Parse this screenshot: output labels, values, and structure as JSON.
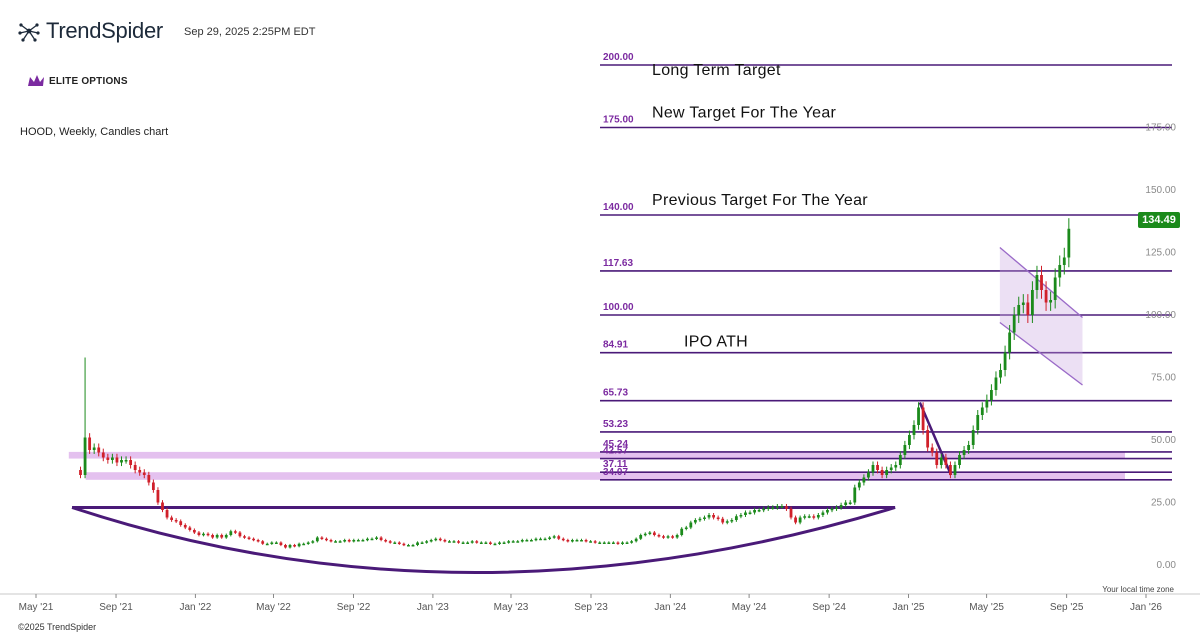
{
  "header": {
    "brand": "TrendSpider",
    "timestamp": "Sep 29, 2025 2:25PM EDT",
    "logo_text": "ELITE OPTIONS",
    "chart_description": "HOOD, Weekly, Candles chart"
  },
  "footer": {
    "timezone_note": "Your local time zone",
    "copyright": "©2025 TrendSpider"
  },
  "colors": {
    "up": "#1b8a1b",
    "down": "#d0202a",
    "level_line": "#4a1a78",
    "level_label": "#7b2aa0",
    "zone": "#d8a6e8",
    "trendline": "#4a1a78",
    "channel": "#9a6ac8",
    "badge": "#1b8a1b"
  },
  "chart_data": {
    "type": "candlestick",
    "title": "HOOD, Weekly, Candles chart",
    "ylim": [
      -8,
      210
    ],
    "y_ticks": [
      {
        "value": 0,
        "label": "0.00"
      },
      {
        "value": 25,
        "label": "25.00"
      },
      {
        "value": 50,
        "label": "50.00"
      },
      {
        "value": 75,
        "label": "75.00"
      },
      {
        "value": 100,
        "label": "100.00"
      },
      {
        "value": 125,
        "label": "125.00"
      },
      {
        "value": 150,
        "label": "150.00"
      },
      {
        "value": 175,
        "label": "175.00"
      }
    ],
    "x_ticks": [
      "May '21",
      "Sep '21",
      "Jan '22",
      "May '22",
      "Sep '22",
      "Jan '23",
      "May '23",
      "Sep '23",
      "Jan '24",
      "May '24",
      "Sep '24",
      "Jan '25",
      "May '25",
      "Sep '25",
      "Jan '26"
    ],
    "last_price": "134.49",
    "levels": [
      {
        "value": 200,
        "label": "200.00",
        "annotation": "Long Term Target"
      },
      {
        "value": 175,
        "label": "175.00",
        "annotation": "New Target For The Year"
      },
      {
        "value": 140,
        "label": "140.00",
        "annotation": "Previous Target For The Year"
      },
      {
        "value": 117.63,
        "label": "117.63",
        "annotation": ""
      },
      {
        "value": 100,
        "label": "100.00",
        "annotation": ""
      },
      {
        "value": 84.91,
        "label": "84.91",
        "annotation": "IPO ATH"
      },
      {
        "value": 65.73,
        "label": "65.73",
        "annotation": ""
      },
      {
        "value": 53.23,
        "label": "53.23",
        "annotation": ""
      },
      {
        "value": 45.24,
        "label": "45.24",
        "annotation": ""
      },
      {
        "value": 42.57,
        "label": "42.57",
        "annotation": ""
      },
      {
        "value": 37.11,
        "label": "37.11",
        "annotation": ""
      },
      {
        "value": 34.07,
        "label": "34.07",
        "annotation": ""
      }
    ],
    "zones": [
      {
        "from": 42.57,
        "to": 45.24,
        "start": "2021-07-15"
      },
      {
        "from": 34.07,
        "to": 37.11,
        "start": "2021-08-10"
      }
    ],
    "closes": [
      {
        "date": "2021-08-02",
        "close": 36
      },
      {
        "date": "2021-08-09",
        "close": 51
      },
      {
        "date": "2021-08-16",
        "close": 46
      },
      {
        "date": "2021-08-23",
        "close": 47
      },
      {
        "date": "2021-08-30",
        "close": 45
      },
      {
        "date": "2021-09-06",
        "close": 43
      },
      {
        "date": "2021-09-13",
        "close": 42
      },
      {
        "date": "2021-09-20",
        "close": 43
      },
      {
        "date": "2021-09-27",
        "close": 41
      },
      {
        "date": "2021-10-04",
        "close": 42
      },
      {
        "date": "2021-10-11",
        "close": 42
      },
      {
        "date": "2021-10-18",
        "close": 40
      },
      {
        "date": "2021-10-25",
        "close": 38
      },
      {
        "date": "2021-11-01",
        "close": 37
      },
      {
        "date": "2021-11-08",
        "close": 36
      },
      {
        "date": "2021-11-15",
        "close": 33
      },
      {
        "date": "2021-11-22",
        "close": 30
      },
      {
        "date": "2021-11-29",
        "close": 25
      },
      {
        "date": "2021-12-06",
        "close": 22
      },
      {
        "date": "2021-12-13",
        "close": 19
      },
      {
        "date": "2021-12-20",
        "close": 18
      },
      {
        "date": "2021-12-27",
        "close": 17.5
      },
      {
        "date": "2022-01-03",
        "close": 16
      },
      {
        "date": "2022-01-10",
        "close": 15
      },
      {
        "date": "2022-01-17",
        "close": 14
      },
      {
        "date": "2022-01-24",
        "close": 13
      },
      {
        "date": "2022-01-31",
        "close": 12
      },
      {
        "date": "2022-02-07",
        "close": 12.5
      },
      {
        "date": "2022-02-14",
        "close": 12
      },
      {
        "date": "2022-02-21",
        "close": 11
      },
      {
        "date": "2022-02-28",
        "close": 12
      },
      {
        "date": "2022-03-07",
        "close": 11
      },
      {
        "date": "2022-03-14",
        "close": 12
      },
      {
        "date": "2022-03-21",
        "close": 13.5
      },
      {
        "date": "2022-03-28",
        "close": 13
      },
      {
        "date": "2022-04-04",
        "close": 11.5
      },
      {
        "date": "2022-04-11",
        "close": 11
      },
      {
        "date": "2022-04-18",
        "close": 10.5
      },
      {
        "date": "2022-04-25",
        "close": 10
      },
      {
        "date": "2022-05-02",
        "close": 9.5
      },
      {
        "date": "2022-05-09",
        "close": 8.5
      },
      {
        "date": "2022-05-16",
        "close": 8.5
      },
      {
        "date": "2022-05-23",
        "close": 9
      },
      {
        "date": "2022-05-30",
        "close": 9
      },
      {
        "date": "2022-06-06",
        "close": 8
      },
      {
        "date": "2022-06-13",
        "close": 7
      },
      {
        "date": "2022-06-20",
        "close": 8
      },
      {
        "date": "2022-06-27",
        "close": 7.5
      },
      {
        "date": "2022-07-04",
        "close": 8.5
      },
      {
        "date": "2022-07-11",
        "close": 8.5
      },
      {
        "date": "2022-07-18",
        "close": 9
      },
      {
        "date": "2022-07-25",
        "close": 9.5
      },
      {
        "date": "2022-08-01",
        "close": 11
      },
      {
        "date": "2022-08-08",
        "close": 10.5
      },
      {
        "date": "2022-08-15",
        "close": 10
      },
      {
        "date": "2022-08-22",
        "close": 9.5
      },
      {
        "date": "2022-08-29",
        "close": 9.5
      },
      {
        "date": "2022-09-05",
        "close": 9.5
      },
      {
        "date": "2022-09-12",
        "close": 10
      },
      {
        "date": "2022-09-19",
        "close": 9.5
      },
      {
        "date": "2022-09-26",
        "close": 10
      },
      {
        "date": "2022-10-03",
        "close": 10
      },
      {
        "date": "2022-10-10",
        "close": 10
      },
      {
        "date": "2022-10-17",
        "close": 10.5
      },
      {
        "date": "2022-10-24",
        "close": 10.5
      },
      {
        "date": "2022-10-31",
        "close": 11
      },
      {
        "date": "2022-11-07",
        "close": 10
      },
      {
        "date": "2022-11-14",
        "close": 9.5
      },
      {
        "date": "2022-11-21",
        "close": 9
      },
      {
        "date": "2022-11-28",
        "close": 9
      },
      {
        "date": "2022-12-05",
        "close": 8.5
      },
      {
        "date": "2022-12-12",
        "close": 8
      },
      {
        "date": "2022-12-19",
        "close": 8
      },
      {
        "date": "2022-12-26",
        "close": 8
      },
      {
        "date": "2023-01-02",
        "close": 9
      },
      {
        "date": "2023-01-09",
        "close": 9
      },
      {
        "date": "2023-01-16",
        "close": 9.5
      },
      {
        "date": "2023-01-23",
        "close": 10
      },
      {
        "date": "2023-01-30",
        "close": 10.5
      },
      {
        "date": "2023-02-06",
        "close": 10
      },
      {
        "date": "2023-02-13",
        "close": 9.5
      },
      {
        "date": "2023-02-20",
        "close": 9.5
      },
      {
        "date": "2023-02-27",
        "close": 9.5
      },
      {
        "date": "2023-03-06",
        "close": 9
      },
      {
        "date": "2023-03-13",
        "close": 9
      },
      {
        "date": "2023-03-20",
        "close": 9
      },
      {
        "date": "2023-03-27",
        "close": 9.5
      },
      {
        "date": "2023-04-03",
        "close": 9
      },
      {
        "date": "2023-04-10",
        "close": 9
      },
      {
        "date": "2023-04-17",
        "close": 9
      },
      {
        "date": "2023-04-24",
        "close": 8.5
      },
      {
        "date": "2023-05-01",
        "close": 8.5
      },
      {
        "date": "2023-05-08",
        "close": 9
      },
      {
        "date": "2023-05-15",
        "close": 9
      },
      {
        "date": "2023-05-22",
        "close": 9.5
      },
      {
        "date": "2023-05-29",
        "close": 9.5
      },
      {
        "date": "2023-06-05",
        "close": 9.5
      },
      {
        "date": "2023-06-12",
        "close": 10
      },
      {
        "date": "2023-06-19",
        "close": 10
      },
      {
        "date": "2023-06-26",
        "close": 10
      },
      {
        "date": "2023-07-03",
        "close": 10.5
      },
      {
        "date": "2023-07-10",
        "close": 10.5
      },
      {
        "date": "2023-07-17",
        "close": 10.5
      },
      {
        "date": "2023-07-24",
        "close": 11
      },
      {
        "date": "2023-07-31",
        "close": 11.5
      },
      {
        "date": "2023-08-07",
        "close": 10.5
      },
      {
        "date": "2023-08-14",
        "close": 10
      },
      {
        "date": "2023-08-21",
        "close": 9.5
      },
      {
        "date": "2023-08-28",
        "close": 10
      },
      {
        "date": "2023-09-04",
        "close": 10
      },
      {
        "date": "2023-09-11",
        "close": 10
      },
      {
        "date": "2023-09-18",
        "close": 9.5
      },
      {
        "date": "2023-09-25",
        "close": 9.5
      },
      {
        "date": "2023-10-02",
        "close": 9
      },
      {
        "date": "2023-10-09",
        "close": 9
      },
      {
        "date": "2023-10-16",
        "close": 9
      },
      {
        "date": "2023-10-23",
        "close": 9
      },
      {
        "date": "2023-10-30",
        "close": 9
      },
      {
        "date": "2023-11-06",
        "close": 8.5
      },
      {
        "date": "2023-11-13",
        "close": 9
      },
      {
        "date": "2023-11-20",
        "close": 9
      },
      {
        "date": "2023-11-27",
        "close": 9.5
      },
      {
        "date": "2023-12-04",
        "close": 10.5
      },
      {
        "date": "2023-12-11",
        "close": 12
      },
      {
        "date": "2023-12-18",
        "close": 12.5
      },
      {
        "date": "2023-12-25",
        "close": 13
      },
      {
        "date": "2024-01-01",
        "close": 12
      },
      {
        "date": "2024-01-08",
        "close": 11.5
      },
      {
        "date": "2024-01-15",
        "close": 11
      },
      {
        "date": "2024-01-22",
        "close": 11.5
      },
      {
        "date": "2024-01-29",
        "close": 11
      },
      {
        "date": "2024-02-05",
        "close": 12
      },
      {
        "date": "2024-02-12",
        "close": 14.5
      },
      {
        "date": "2024-02-19",
        "close": 15
      },
      {
        "date": "2024-02-26",
        "close": 17
      },
      {
        "date": "2024-03-04",
        "close": 18
      },
      {
        "date": "2024-03-11",
        "close": 18.5
      },
      {
        "date": "2024-03-18",
        "close": 19
      },
      {
        "date": "2024-03-25",
        "close": 20
      },
      {
        "date": "2024-04-01",
        "close": 19
      },
      {
        "date": "2024-04-08",
        "close": 18.5
      },
      {
        "date": "2024-04-15",
        "close": 17
      },
      {
        "date": "2024-04-22",
        "close": 17.5
      },
      {
        "date": "2024-04-29",
        "close": 18
      },
      {
        "date": "2024-05-06",
        "close": 19.5
      },
      {
        "date": "2024-05-13",
        "close": 20
      },
      {
        "date": "2024-05-20",
        "close": 21
      },
      {
        "date": "2024-05-27",
        "close": 21
      },
      {
        "date": "2024-06-03",
        "close": 22
      },
      {
        "date": "2024-06-10",
        "close": 22
      },
      {
        "date": "2024-06-17",
        "close": 22.5
      },
      {
        "date": "2024-06-24",
        "close": 23
      },
      {
        "date": "2024-07-01",
        "close": 23
      },
      {
        "date": "2024-07-08",
        "close": 23.5
      },
      {
        "date": "2024-07-15",
        "close": 23.5
      },
      {
        "date": "2024-07-22",
        "close": 22.5
      },
      {
        "date": "2024-07-29",
        "close": 19
      },
      {
        "date": "2024-08-05",
        "close": 17
      },
      {
        "date": "2024-08-12",
        "close": 19
      },
      {
        "date": "2024-08-19",
        "close": 19.5
      },
      {
        "date": "2024-08-26",
        "close": 19.5
      },
      {
        "date": "2024-09-02",
        "close": 19
      },
      {
        "date": "2024-09-09",
        "close": 20
      },
      {
        "date": "2024-09-16",
        "close": 21
      },
      {
        "date": "2024-09-23",
        "close": 22
      },
      {
        "date": "2024-09-30",
        "close": 22.5
      },
      {
        "date": "2024-10-07",
        "close": 23
      },
      {
        "date": "2024-10-14",
        "close": 24
      },
      {
        "date": "2024-10-21",
        "close": 25
      },
      {
        "date": "2024-10-28",
        "close": 25
      },
      {
        "date": "2024-11-04",
        "close": 31
      },
      {
        "date": "2024-11-11",
        "close": 33
      },
      {
        "date": "2024-11-18",
        "close": 35
      },
      {
        "date": "2024-11-25",
        "close": 37
      },
      {
        "date": "2024-12-02",
        "close": 40
      },
      {
        "date": "2024-12-09",
        "close": 38
      },
      {
        "date": "2024-12-16",
        "close": 36
      },
      {
        "date": "2024-12-23",
        "close": 38
      },
      {
        "date": "2024-12-30",
        "close": 39
      },
      {
        "date": "2025-01-06",
        "close": 40
      },
      {
        "date": "2025-01-13",
        "close": 44
      },
      {
        "date": "2025-01-20",
        "close": 48
      },
      {
        "date": "2025-01-27",
        "close": 52
      },
      {
        "date": "2025-02-03",
        "close": 56
      },
      {
        "date": "2025-02-10",
        "close": 63
      },
      {
        "date": "2025-02-17",
        "close": 54
      },
      {
        "date": "2025-02-24",
        "close": 47
      },
      {
        "date": "2025-03-03",
        "close": 45
      },
      {
        "date": "2025-03-10",
        "close": 40
      },
      {
        "date": "2025-03-17",
        "close": 43
      },
      {
        "date": "2025-03-24",
        "close": 40
      },
      {
        "date": "2025-03-31",
        "close": 36
      },
      {
        "date": "2025-04-07",
        "close": 40
      },
      {
        "date": "2025-04-14",
        "close": 44
      },
      {
        "date": "2025-04-21",
        "close": 46
      },
      {
        "date": "2025-04-28",
        "close": 48
      },
      {
        "date": "2025-05-05",
        "close": 54
      },
      {
        "date": "2025-05-12",
        "close": 60
      },
      {
        "date": "2025-05-19",
        "close": 63
      },
      {
        "date": "2025-05-26",
        "close": 66
      },
      {
        "date": "2025-06-02",
        "close": 70
      },
      {
        "date": "2025-06-09",
        "close": 75
      },
      {
        "date": "2025-06-16",
        "close": 78
      },
      {
        "date": "2025-06-23",
        "close": 85
      },
      {
        "date": "2025-06-30",
        "close": 93
      },
      {
        "date": "2025-07-07",
        "close": 100
      },
      {
        "date": "2025-07-14",
        "close": 104
      },
      {
        "date": "2025-07-21",
        "close": 105
      },
      {
        "date": "2025-07-28",
        "close": 100
      },
      {
        "date": "2025-08-04",
        "close": 110
      },
      {
        "date": "2025-08-11",
        "close": 116
      },
      {
        "date": "2025-08-18",
        "close": 110
      },
      {
        "date": "2025-08-25",
        "close": 105
      },
      {
        "date": "2025-09-01",
        "close": 106
      },
      {
        "date": "2025-09-08",
        "close": 115
      },
      {
        "date": "2025-09-15",
        "close": 120
      },
      {
        "date": "2025-09-22",
        "close": 123
      },
      {
        "date": "2025-09-29",
        "close": 134.49
      }
    ],
    "drawings": {
      "rounding_bottom_arc": {
        "from": {
          "date": "2021-07-20",
          "price": 23
        },
        "to": {
          "date": "2025-01-05",
          "price": 23
        },
        "bottom": {
          "date": "2023-04-01",
          "price": -3
        }
      },
      "neckline": {
        "from": {
          "date": "2021-07-20",
          "price": 23
        },
        "to": {
          "date": "2025-01-05",
          "price": 23
        }
      },
      "breakout_trendline": {
        "from": {
          "date": "2025-02-12",
          "price": 65
        },
        "to": {
          "date": "2025-04-01",
          "price": 36
        }
      },
      "bull_flag_channel": {
        "upper": {
          "from": {
            "date": "2025-06-15",
            "price": 127
          },
          "to": {
            "date": "2025-10-20",
            "price": 99
          }
        },
        "lower": {
          "from": {
            "date": "2025-06-15",
            "price": 97
          },
          "to": {
            "date": "2025-10-20",
            "price": 72
          }
        }
      }
    }
  }
}
